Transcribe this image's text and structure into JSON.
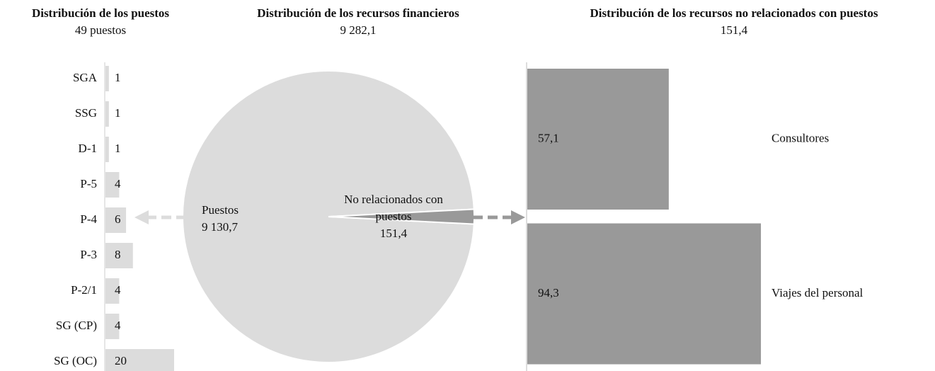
{
  "chart_data": [
    {
      "type": "hbar",
      "title": "Distribución de los puestos",
      "subtitle": "49 puestos",
      "categories": [
        "SGA",
        "SSG",
        "D-1",
        "P-5",
        "P-4",
        "P-3",
        "P-2/1",
        "SG (CP)",
        "SG (OC)"
      ],
      "values": [
        1,
        1,
        1,
        4,
        6,
        8,
        4,
        4,
        20
      ],
      "color": "#dcdcdc",
      "xlim": [
        0,
        20
      ]
    },
    {
      "type": "pie",
      "title": "Distribución de los recursos financieros",
      "subtitle": "9 282,1",
      "labels": [
        "Puestos",
        "No relacionados con puestos"
      ],
      "values": [
        9130.7,
        151.4
      ],
      "value_labels": [
        "9 130,7",
        "151,4"
      ],
      "colors": [
        "#dcdcdc",
        "#999999"
      ]
    },
    {
      "type": "hbar",
      "title": "Distribución de los recursos no relacionados con puestos",
      "subtitle": "151,4",
      "categories": [
        "Consultores",
        "Viajes del personal"
      ],
      "values": [
        57.1,
        94.3
      ],
      "value_labels": [
        "57,1",
        "94,3"
      ],
      "color": "#999999",
      "xlim": [
        0,
        100
      ]
    }
  ]
}
